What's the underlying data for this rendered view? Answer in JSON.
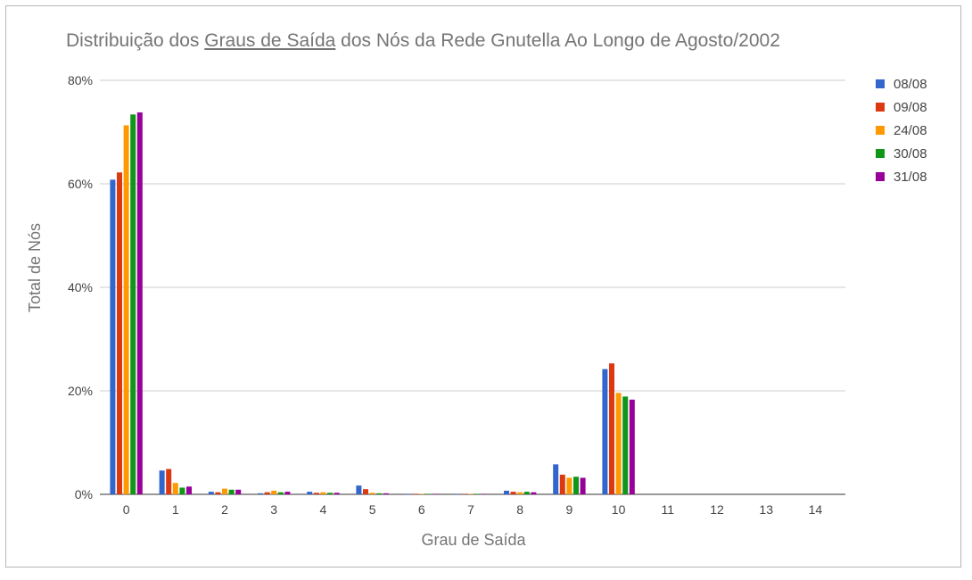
{
  "chart_data": {
    "type": "bar",
    "title": {
      "prefix": "Distribuição dos ",
      "underlined": "Graus de Saída",
      "suffix": " dos Nós da Rede Gnutella Ao Longo de Agosto/2002"
    },
    "xlabel": "Grau de Saída",
    "ylabel": "Total de Nós",
    "ylim": [
      0,
      80
    ],
    "yticks": [
      "0%",
      "20%",
      "40%",
      "60%",
      "80%"
    ],
    "ytick_values": [
      0,
      20,
      40,
      60,
      80
    ],
    "grid": true,
    "legend_position": "right",
    "categories": [
      "0",
      "1",
      "2",
      "3",
      "4",
      "5",
      "6",
      "7",
      "8",
      "9",
      "10",
      "11",
      "12",
      "13",
      "14"
    ],
    "series": [
      {
        "name": "08/08",
        "color": "#3366cc",
        "values": [
          60.8,
          4.6,
          0.5,
          0.2,
          0.5,
          1.7,
          0.1,
          0.1,
          0.7,
          5.8,
          24.2,
          0,
          0,
          0,
          0
        ]
      },
      {
        "name": "09/08",
        "color": "#dc3912",
        "values": [
          62.2,
          4.9,
          0.4,
          0.4,
          0.3,
          1.0,
          0.1,
          0.1,
          0.5,
          3.8,
          25.3,
          0,
          0,
          0,
          0
        ]
      },
      {
        "name": "24/08",
        "color": "#ff9900",
        "values": [
          71.3,
          2.2,
          1.1,
          0.7,
          0.4,
          0.3,
          0.1,
          0.1,
          0.4,
          3.2,
          19.6,
          0,
          0,
          0,
          0
        ]
      },
      {
        "name": "30/08",
        "color": "#109618",
        "values": [
          73.4,
          1.3,
          0.9,
          0.4,
          0.3,
          0.2,
          0.1,
          0.1,
          0.5,
          3.4,
          18.9,
          0,
          0,
          0,
          0
        ]
      },
      {
        "name": "31/08",
        "color": "#990099",
        "values": [
          73.8,
          1.5,
          0.9,
          0.5,
          0.3,
          0.2,
          0.1,
          0.1,
          0.4,
          3.2,
          18.3,
          0,
          0,
          0,
          0
        ]
      }
    ]
  }
}
